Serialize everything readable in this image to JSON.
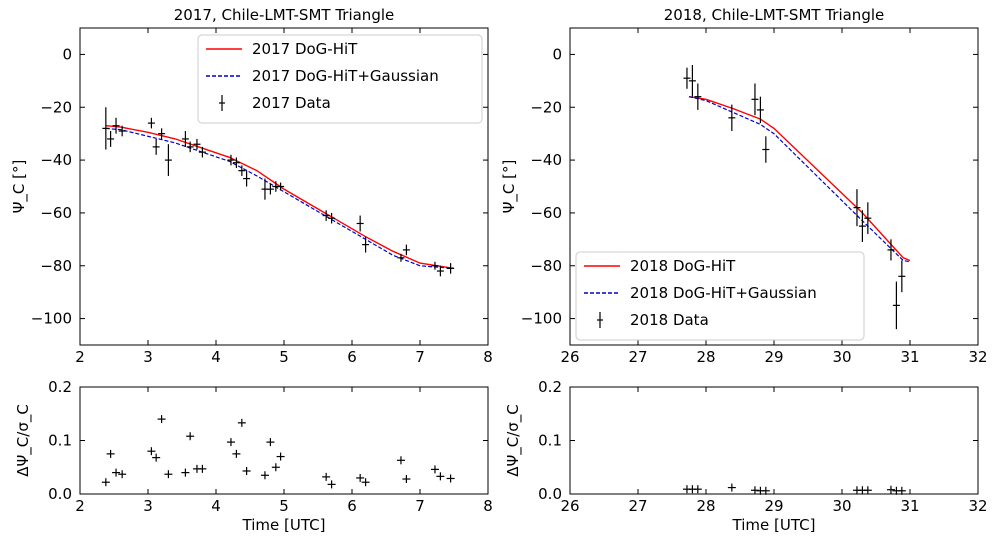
{
  "chart_data": [
    {
      "type": "line",
      "title": "2017, Chile-LMT-SMT Triangle",
      "xlabel": "",
      "ylabel": "Ψ_C [°]",
      "xlim": [
        2,
        8
      ],
      "ylim": [
        -110,
        10
      ],
      "xticks": [
        2,
        3,
        4,
        5,
        6,
        7,
        8
      ],
      "yticks": [
        0,
        -20,
        -40,
        -60,
        -80,
        -100
      ],
      "ytick_labels": [
        "0",
        "−20",
        "−40",
        "−60",
        "−80",
        "−100"
      ],
      "legend_position": "top-right",
      "series": [
        {
          "name": "2017 DoG-HiT",
          "style": "solid",
          "color": "#ff0000",
          "x": [
            2.38,
            2.6,
            3.0,
            3.4,
            3.8,
            4.2,
            4.6,
            5.0,
            5.4,
            5.8,
            6.2,
            6.6,
            7.0,
            7.5
          ],
          "y": [
            -27,
            -27.5,
            -29.5,
            -32,
            -35.5,
            -39,
            -44,
            -51,
            -57,
            -63,
            -69,
            -74.5,
            -79,
            -81
          ]
        },
        {
          "name": "2017 DoG-HiT+Gaussian",
          "style": "dashed",
          "color": "#0000cc",
          "x": [
            2.38,
            2.6,
            3.0,
            3.4,
            3.8,
            4.2,
            4.6,
            5.0,
            5.4,
            5.8,
            6.2,
            6.6,
            7.0,
            7.5
          ],
          "y": [
            -28,
            -28.5,
            -31,
            -33.5,
            -37,
            -40.5,
            -46,
            -52,
            -58,
            -64,
            -70,
            -76,
            -80,
            -81
          ]
        },
        {
          "name": "2017 Data",
          "style": "errorbar",
          "color": "#000000",
          "x": [
            2.38,
            2.45,
            2.53,
            2.62,
            3.05,
            3.12,
            3.2,
            3.3,
            3.55,
            3.62,
            3.72,
            3.8,
            4.22,
            4.3,
            4.38,
            4.45,
            4.72,
            4.8,
            4.88,
            4.95,
            5.62,
            5.7,
            6.12,
            6.2,
            6.72,
            6.8,
            7.22,
            7.3,
            7.45
          ],
          "y": [
            -28,
            -32,
            -27,
            -29,
            -26,
            -35,
            -30,
            -40,
            -32,
            -35,
            -34,
            -37,
            -40,
            -41,
            -44,
            -47,
            -51,
            -51,
            -50,
            -50,
            -61,
            -62,
            -64,
            -72,
            -77,
            -74,
            -80,
            -82,
            -81
          ],
          "err": [
            8,
            3,
            3,
            2,
            2,
            3,
            2,
            6,
            3,
            2,
            2,
            2,
            2,
            2,
            2,
            3,
            4,
            2,
            2,
            1.5,
            2,
            2,
            3,
            3,
            1.5,
            2,
            1.5,
            2,
            2
          ]
        }
      ]
    },
    {
      "type": "line",
      "title": "2018, Chile-LMT-SMT Triangle",
      "xlabel": "",
      "ylabel": "Ψ_C [°]",
      "xlim": [
        26,
        32
      ],
      "ylim": [
        -110,
        10
      ],
      "xticks": [
        26,
        27,
        28,
        29,
        30,
        31,
        32
      ],
      "yticks": [
        0,
        -20,
        -40,
        -60,
        -80,
        -100
      ],
      "ytick_labels": [
        "0",
        "−20",
        "−40",
        "−60",
        "−80",
        "−100"
      ],
      "legend_position": "bottom-left",
      "series": [
        {
          "name": "2018 DoG-HiT",
          "style": "solid",
          "color": "#ff0000",
          "x": [
            27.75,
            28.0,
            28.4,
            28.8,
            29.0,
            30.3,
            30.9,
            31.0
          ],
          "y": [
            -16,
            -17,
            -20.5,
            -24.5,
            -28,
            -60,
            -77,
            -78
          ]
        },
        {
          "name": "2018 DoG-HiT+Gaussian",
          "style": "dashed",
          "color": "#0000cc",
          "x": [
            27.75,
            28.0,
            28.4,
            28.8,
            29.0,
            30.3,
            30.9,
            31.0
          ],
          "y": [
            -16,
            -17.5,
            -22,
            -26.5,
            -30,
            -63,
            -78,
            -78.5
          ]
        },
        {
          "name": "2018 Data",
          "style": "errorbar",
          "color": "#000000",
          "x": [
            27.72,
            27.8,
            27.88,
            28.38,
            28.72,
            28.8,
            28.88,
            30.22,
            30.3,
            30.38,
            30.72,
            30.8,
            30.88
          ],
          "y": [
            -9,
            -10,
            -16,
            -24,
            -17,
            -21,
            -36,
            -58,
            -65,
            -62,
            -74,
            -95,
            -84
          ],
          "err": [
            4,
            6,
            5,
            5,
            6,
            5,
            5,
            7,
            6,
            6,
            4,
            9,
            6
          ]
        }
      ]
    },
    {
      "type": "scatter",
      "title": "",
      "xlabel": "Time [UTC]",
      "ylabel": "ΔΨ_C/σ_C",
      "xlim": [
        2,
        8
      ],
      "ylim": [
        0,
        0.2
      ],
      "xticks": [
        2,
        3,
        4,
        5,
        6,
        7,
        8
      ],
      "yticks": [
        0.0,
        0.1,
        0.2
      ],
      "ytick_labels": [
        "0.0",
        "0.1",
        "0.2"
      ],
      "series": [
        {
          "name": "",
          "color": "#000000",
          "x": [
            2.38,
            2.45,
            2.53,
            2.62,
            3.05,
            3.12,
            3.2,
            3.3,
            3.55,
            3.62,
            3.72,
            3.8,
            4.22,
            4.3,
            4.38,
            4.45,
            4.72,
            4.8,
            4.88,
            4.95,
            5.62,
            5.7,
            6.12,
            6.2,
            6.72,
            6.8,
            7.22,
            7.3,
            7.45
          ],
          "y": [
            0.022,
            0.075,
            0.04,
            0.037,
            0.08,
            0.068,
            0.14,
            0.037,
            0.04,
            0.108,
            0.047,
            0.047,
            0.097,
            0.075,
            0.133,
            0.043,
            0.035,
            0.097,
            0.05,
            0.07,
            0.032,
            0.018,
            0.03,
            0.022,
            0.063,
            0.028,
            0.046,
            0.033,
            0.029
          ]
        }
      ]
    },
    {
      "type": "scatter",
      "title": "",
      "xlabel": "Time [UTC]",
      "ylabel": "ΔΨ_C/σ_C",
      "xlim": [
        26,
        32
      ],
      "ylim": [
        0,
        0.2
      ],
      "xticks": [
        26,
        27,
        28,
        29,
        30,
        31,
        32
      ],
      "yticks": [
        0.0,
        0.1,
        0.2
      ],
      "ytick_labels": [
        "0.0",
        "0.1",
        "0.2"
      ],
      "series": [
        {
          "name": "",
          "color": "#000000",
          "x": [
            27.72,
            27.8,
            27.88,
            28.38,
            28.72,
            28.8,
            28.88,
            30.22,
            30.3,
            30.38,
            30.72,
            30.8,
            30.88
          ],
          "y": [
            0.009,
            0.009,
            0.009,
            0.012,
            0.007,
            0.006,
            0.006,
            0.007,
            0.007,
            0.007,
            0.008,
            0.006,
            0.006
          ]
        }
      ]
    }
  ]
}
